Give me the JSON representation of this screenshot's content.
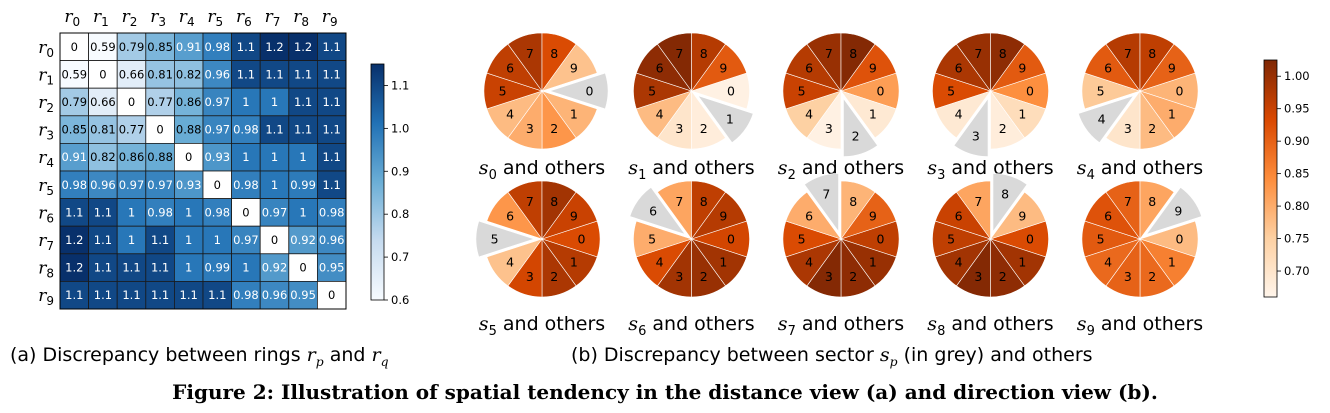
{
  "chart_data": [
    {
      "type": "heatmap",
      "title": "",
      "row_labels": [
        "r0",
        "r1",
        "r2",
        "r3",
        "r4",
        "r5",
        "r6",
        "r7",
        "r8",
        "r9"
      ],
      "col_labels": [
        "r0",
        "r1",
        "r2",
        "r3",
        "r4",
        "r5",
        "r6",
        "r7",
        "r8",
        "r9"
      ],
      "values": [
        [
          "0",
          "0.59",
          "0.79",
          "0.85",
          "0.91",
          "0.98",
          "1.1",
          "1.2",
          "1.2",
          "1.1"
        ],
        [
          "0.59",
          "0",
          "0.66",
          "0.81",
          "0.82",
          "0.96",
          "1.1",
          "1.1",
          "1.1",
          "1.1"
        ],
        [
          "0.79",
          "0.66",
          "0",
          "0.77",
          "0.86",
          "0.97",
          "1",
          "1",
          "1.1",
          "1.1"
        ],
        [
          "0.85",
          "0.81",
          "0.77",
          "0",
          "0.88",
          "0.97",
          "0.98",
          "1.1",
          "1.1",
          "1.1"
        ],
        [
          "0.91",
          "0.82",
          "0.86",
          "0.88",
          "0",
          "0.93",
          "1",
          "1",
          "1",
          "1.1"
        ],
        [
          "0.98",
          "0.96",
          "0.97",
          "0.97",
          "0.93",
          "0",
          "0.98",
          "1",
          "0.99",
          "1.1"
        ],
        [
          "1.1",
          "1.1",
          "1",
          "0.98",
          "1",
          "0.98",
          "0",
          "0.97",
          "1",
          "0.98"
        ],
        [
          "1.2",
          "1.1",
          "1",
          "1.1",
          "1",
          "1",
          "0.97",
          "0",
          "0.92",
          "0.96"
        ],
        [
          "1.2",
          "1.1",
          "1.1",
          "1.1",
          "1",
          "0.99",
          "1",
          "0.92",
          "0",
          "0.95"
        ],
        [
          "1.1",
          "1.1",
          "1.1",
          "1.1",
          "1.1",
          "1.1",
          "0.98",
          "0.96",
          "0.95",
          "0"
        ]
      ],
      "colorbar": {
        "min": 0.6,
        "max": 1.15,
        "ticks": [
          "0.6",
          "0.7",
          "0.8",
          "0.9",
          "1.0",
          "1.1"
        ],
        "tick_values": [
          0.6,
          0.7,
          0.8,
          0.9,
          1.0,
          1.1
        ],
        "colormap": "Blues",
        "low_color": "#f7fbff",
        "high_color": "#08306b"
      },
      "caption": {
        "prefix": "(a) Discrepancy between rings ",
        "var1": "r",
        "sub1": "p",
        "middle": " and ",
        "var2": "r",
        "sub2": "q"
      }
    },
    {
      "type": "pie",
      "title": "",
      "sectors": [
        "0",
        "1",
        "2",
        "3",
        "4",
        "5",
        "6",
        "7",
        "8",
        "9"
      ],
      "charts": [
        {
          "label_var": "s",
          "label_sub": "0",
          "label_text": " and others",
          "grey": 0,
          "values": [
            null,
            0.79,
            0.83,
            0.8,
            0.78,
            0.95,
            0.96,
            0.98,
            0.93,
            0.77
          ]
        },
        {
          "label_var": "s",
          "label_sub": "1",
          "label_text": " and others",
          "grey": 1,
          "values": [
            0.67,
            null,
            0.68,
            0.7,
            0.78,
            0.98,
            1.01,
            1.02,
            0.97,
            0.91
          ]
        },
        {
          "label_var": "s",
          "label_sub": "2",
          "label_text": " and others",
          "grey": 2,
          "values": [
            0.82,
            0.69,
            null,
            0.67,
            0.75,
            0.95,
            0.97,
            1.0,
            1.02,
            0.92
          ]
        },
        {
          "label_var": "s",
          "label_sub": "3",
          "label_text": " and others",
          "grey": 3,
          "values": [
            0.84,
            0.72,
            0.68,
            null,
            0.69,
            0.93,
            0.98,
            1.0,
            1.01,
            0.91
          ]
        },
        {
          "label_var": "s",
          "label_sub": "4",
          "label_text": " and others",
          "grey": 4,
          "values": [
            0.79,
            0.8,
            0.78,
            0.7,
            null,
            0.76,
            0.91,
            0.97,
            0.96,
            0.9
          ]
        },
        {
          "label_var": "s",
          "label_sub": "5",
          "label_text": " and others",
          "grey": 5,
          "values": [
            0.93,
            0.97,
            0.98,
            0.94,
            0.77,
            null,
            0.83,
            0.96,
            0.99,
            0.95
          ]
        },
        {
          "label_var": "s",
          "label_sub": "6",
          "label_text": " and others",
          "grey": 6,
          "values": [
            0.94,
            0.99,
            1.0,
            0.99,
            0.93,
            0.8,
            null,
            0.81,
            0.96,
            0.97
          ]
        },
        {
          "label_var": "s",
          "label_sub": "7",
          "label_text": " and others",
          "grey": 7,
          "values": [
            0.96,
            1.0,
            1.01,
            1.02,
            0.98,
            0.93,
            0.8,
            null,
            0.79,
            0.9
          ]
        },
        {
          "label_var": "s",
          "label_sub": "8",
          "label_text": " and others",
          "grey": 8,
          "values": [
            0.93,
            0.99,
            1.01,
            1.02,
            0.99,
            0.96,
            0.95,
            0.81,
            null,
            0.78
          ]
        },
        {
          "label_var": "s",
          "label_sub": "9",
          "label_text": " and others",
          "grey": 9,
          "values": [
            0.78,
            0.86,
            0.89,
            0.9,
            0.89,
            0.91,
            0.92,
            0.9,
            0.81,
            null
          ]
        }
      ],
      "colorbar": {
        "min": 0.66,
        "max": 1.025,
        "ticks": [
          "0.70",
          "0.75",
          "0.80",
          "0.85",
          "0.90",
          "0.95",
          "1.00"
        ],
        "tick_values": [
          0.7,
          0.75,
          0.8,
          0.85,
          0.9,
          0.95,
          1.0
        ],
        "colormap": "Oranges",
        "low_color": "#fff5eb",
        "high_color": "#7f2704",
        "grey_color": "#d9d9d9"
      },
      "caption": {
        "prefix": "(b) Discrepancy between sector ",
        "var": "s",
        "sub": "p",
        "suffix": " (in grey) and others"
      }
    }
  ],
  "figure_caption": "Figure 2: Illustration of spatial tendency in the distance view (a) and direction view (b)."
}
